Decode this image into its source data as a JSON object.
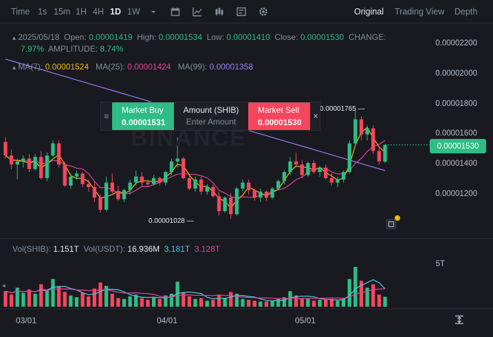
{
  "toolbar": {
    "timeframes": [
      "Time",
      "1s",
      "15m",
      "1H",
      "4H",
      "1D",
      "1W"
    ],
    "active_timeframe": "1D",
    "icons": [
      "chevron-down-icon",
      "calendar-icon",
      "line-chart-icon",
      "candles-icon",
      "indicator-icon",
      "settings-icon"
    ],
    "views": [
      "Original",
      "Trading View",
      "Depth"
    ],
    "active_view": "Original"
  },
  "ohlc": {
    "date": "2025/05/18",
    "open_label": "Open:",
    "open": "0.00001419",
    "high_label": "High:",
    "high": "0.00001534",
    "low_label": "Low:",
    "low": "0.00001410",
    "close_label": "Close:",
    "close": "0.00001530",
    "change_label": "CHANGE:",
    "change": "7.97%",
    "amplitude_label": "AMPLITUDE:",
    "amplitude": "8.74%"
  },
  "ma": {
    "ma7_label": "MA(7):",
    "ma7": "0.00001524",
    "ma7_color": "#f0b90b",
    "ma25_label": "MA(25):",
    "ma25": "0.00001424",
    "ma25_color": "#e2409b",
    "ma99_label": "MA(99):",
    "ma99": "0.00001358",
    "ma99_color": "#a27cf6"
  },
  "price_axis": [
    "0.00002200",
    "0.00002000",
    "0.00001800",
    "0.00001600",
    "0.00001400",
    "0.00001200"
  ],
  "current_price": "0.00001530",
  "trade_panel": {
    "buy_label": "Market Buy",
    "buy_price": "0.00001531",
    "amount_label": "Amount (SHIB)",
    "amount_placeholder": "Enter Amount",
    "sell_label": "Market Sell",
    "sell_price": "0.00001530",
    "close_glyph": "×",
    "drag_glyph": "≡"
  },
  "high_marker": "0.00001765",
  "low_marker": "0.00001028",
  "volume": {
    "shib_label": "Vol(SHIB):",
    "shib": "1.151T",
    "usdt_label": "Vol(USDT):",
    "usdt": "16.936M",
    "ma1": "3.181T",
    "ma2": "3.128T",
    "axis_label": "5T"
  },
  "dates": [
    "03/01",
    "04/01",
    "05/01"
  ],
  "colors": {
    "up": "#2ebd85",
    "down": "#f6465d",
    "ma_fast": "#4fc6da",
    "ma_slow": "#e2409b"
  },
  "watermark": "BINANCE",
  "chart_data": {
    "type": "candlestick",
    "title": "",
    "price_range": [
      1e-05,
      2.27e-05
    ],
    "candles": [
      [
        1550,
        1580,
        1440,
        1460
      ],
      [
        1460,
        1500,
        1370,
        1400
      ],
      [
        1400,
        1440,
        1300,
        1420
      ],
      [
        1420,
        1460,
        1380,
        1440
      ],
      [
        1440,
        1470,
        1350,
        1370
      ],
      [
        1370,
        1470,
        1360,
        1450
      ],
      [
        1450,
        1490,
        1300,
        1310
      ],
      [
        1310,
        1480,
        1290,
        1460
      ],
      [
        1460,
        1560,
        1450,
        1540
      ],
      [
        1540,
        1560,
        1380,
        1400
      ],
      [
        1400,
        1420,
        1250,
        1260
      ],
      [
        1260,
        1340,
        1240,
        1320
      ],
      [
        1320,
        1360,
        1300,
        1340
      ],
      [
        1340,
        1350,
        1250,
        1270
      ],
      [
        1270,
        1300,
        1220,
        1250
      ],
      [
        1250,
        1290,
        1150,
        1180
      ],
      [
        1180,
        1200,
        1080,
        1100
      ],
      [
        1100,
        1320,
        1090,
        1280
      ],
      [
        1280,
        1340,
        1200,
        1220
      ],
      [
        1220,
        1260,
        1160,
        1170
      ],
      [
        1170,
        1240,
        1150,
        1230
      ],
      [
        1230,
        1300,
        1200,
        1280
      ],
      [
        1280,
        1360,
        1260,
        1320
      ],
      [
        1320,
        1350,
        1260,
        1280
      ],
      [
        1280,
        1300,
        1250,
        1270
      ],
      [
        1270,
        1330,
        1260,
        1310
      ],
      [
        1310,
        1320,
        1260,
        1280
      ],
      [
        1280,
        1360,
        1260,
        1350
      ],
      [
        1350,
        1440,
        1330,
        1420
      ],
      [
        1420,
        1580,
        1380,
        1440
      ],
      [
        1440,
        1450,
        1300,
        1310
      ],
      [
        1310,
        1330,
        1230,
        1240
      ],
      [
        1240,
        1320,
        1220,
        1300
      ],
      [
        1300,
        1320,
        1200,
        1220
      ],
      [
        1220,
        1270,
        1200,
        1250
      ],
      [
        1250,
        1270,
        1180,
        1190
      ],
      [
        1190,
        1220,
        1060,
        1090
      ],
      [
        1090,
        1190,
        1080,
        1180
      ],
      [
        1180,
        1210,
        1040,
        1070
      ],
      [
        1070,
        1250,
        1060,
        1240
      ],
      [
        1240,
        1300,
        1220,
        1280
      ],
      [
        1280,
        1300,
        1200,
        1230
      ],
      [
        1230,
        1240,
        1160,
        1180
      ],
      [
        1180,
        1240,
        1150,
        1220
      ],
      [
        1220,
        1230,
        1160,
        1180
      ],
      [
        1180,
        1250,
        1170,
        1240
      ],
      [
        1240,
        1300,
        1230,
        1290
      ],
      [
        1290,
        1360,
        1270,
        1350
      ],
      [
        1350,
        1450,
        1330,
        1420
      ],
      [
        1420,
        1480,
        1380,
        1400
      ],
      [
        1400,
        1430,
        1310,
        1330
      ],
      [
        1330,
        1420,
        1320,
        1410
      ],
      [
        1410,
        1430,
        1340,
        1350
      ],
      [
        1350,
        1390,
        1320,
        1380
      ],
      [
        1380,
        1400,
        1300,
        1310
      ],
      [
        1310,
        1340,
        1260,
        1280
      ],
      [
        1280,
        1320,
        1250,
        1300
      ],
      [
        1300,
        1360,
        1280,
        1350
      ],
      [
        1350,
        1560,
        1340,
        1540
      ],
      [
        1540,
        1765,
        1520,
        1700
      ],
      [
        1700,
        1720,
        1560,
        1600
      ],
      [
        1600,
        1660,
        1560,
        1640
      ],
      [
        1640,
        1660,
        1470,
        1490
      ],
      [
        1490,
        1520,
        1400,
        1420
      ],
      [
        1419,
        1534,
        1410,
        1530
      ]
    ],
    "candle_units": "1e-8 SHIB price",
    "volume_units": "T",
    "volumes": [
      1.8,
      1.4,
      2.2,
      1.6,
      2.0,
      1.5,
      2.6,
      1.9,
      3.2,
      2.4,
      1.7,
      1.3,
      1.1,
      1.6,
      1.2,
      2.1,
      2.8,
      2.4,
      1.5,
      1.0,
      0.9,
      1.2,
      1.4,
      1.0,
      0.8,
      1.1,
      0.9,
      1.3,
      1.5,
      2.9,
      1.6,
      1.2,
      0.9,
      1.0,
      0.7,
      0.8,
      1.4,
      1.0,
      1.7,
      1.5,
      0.9,
      0.8,
      0.7,
      0.6,
      0.6,
      0.7,
      0.9,
      1.1,
      1.8,
      1.3,
      1.0,
      0.9,
      0.7,
      0.8,
      0.8,
      0.9,
      0.7,
      0.9,
      3.2,
      4.6,
      3.0,
      2.2,
      2.6,
      1.4,
      1.15
    ]
  }
}
